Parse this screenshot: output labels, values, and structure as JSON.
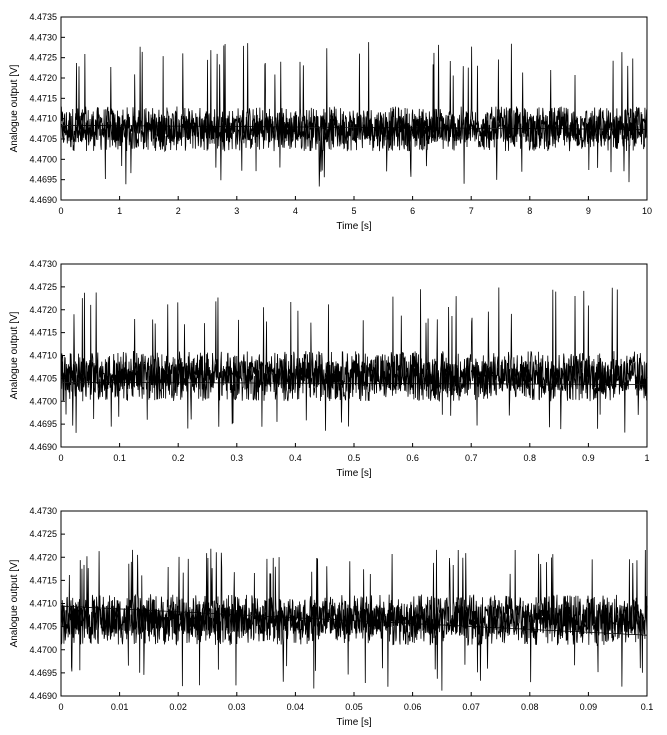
{
  "chart_data": [
    {
      "type": "line",
      "xlabel": "Time [s]",
      "ylabel": "Analogue output [V]",
      "xlim": [
        0,
        10
      ],
      "ylim": [
        4.469,
        4.4735
      ],
      "xticks": [
        0,
        1,
        2,
        3,
        4,
        5,
        6,
        7,
        8,
        9,
        10
      ],
      "xtick_labels": [
        "0",
        "1",
        "2",
        "3",
        "4",
        "5",
        "6",
        "7",
        "8",
        "9",
        "10"
      ],
      "yticks": [
        4.469,
        4.4695,
        4.47,
        4.4705,
        4.471,
        4.4715,
        4.472,
        4.4725,
        4.473,
        4.4735
      ],
      "ytick_labels": [
        "4.4690",
        "4.4695",
        "4.4700",
        "4.4705",
        "4.4710",
        "4.4715",
        "4.4720",
        "4.4725",
        "4.4730",
        "4.4735"
      ],
      "grid": false,
      "signal": {
        "mean": 4.47075,
        "core_min": 4.4702,
        "core_max": 4.4713,
        "spike_min": 4.4693,
        "spike_max": 4.4729
      },
      "series": [
        {
          "values_summary": "dense noise trace around 4.47075 V",
          "color": "#000000"
        }
      ]
    },
    {
      "type": "line",
      "xlabel": "Time [s]",
      "ylabel": "Analogue output [V]",
      "xlim": [
        0,
        1
      ],
      "ylim": [
        4.469,
        4.473
      ],
      "xticks": [
        0,
        0.1,
        0.2,
        0.3,
        0.4,
        0.5,
        0.6,
        0.7,
        0.8,
        0.9,
        1
      ],
      "xtick_labels": [
        "0",
        "0.1",
        "0.2",
        "0.3",
        "0.4",
        "0.5",
        "0.6",
        "0.7",
        "0.8",
        "0.9",
        "1"
      ],
      "yticks": [
        4.469,
        4.4695,
        4.47,
        4.4705,
        4.471,
        4.4715,
        4.472,
        4.4725,
        4.473
      ],
      "ytick_labels": [
        "4.4690",
        "4.4695",
        "4.4700",
        "4.4705",
        "4.4710",
        "4.4715",
        "4.4720",
        "4.4725",
        "4.4730"
      ],
      "grid": false,
      "signal": {
        "mean": 4.47055,
        "core_min": 4.47,
        "core_max": 4.4711,
        "spike_min": 4.4693,
        "spike_max": 4.4725
      },
      "series": [
        {
          "values_summary": "dense noise trace around 4.47055 V",
          "color": "#000000"
        }
      ]
    },
    {
      "type": "line",
      "xlabel": "Time [s]",
      "ylabel": "Analogue output [V]",
      "xlim": [
        0,
        0.1
      ],
      "ylim": [
        4.469,
        4.473
      ],
      "xticks": [
        0,
        0.01,
        0.02,
        0.03,
        0.04,
        0.05,
        0.06,
        0.07,
        0.08,
        0.09,
        0.1
      ],
      "xtick_labels": [
        "0",
        "0.01",
        "0.02",
        "0.03",
        "0.04",
        "0.05",
        "0.06",
        "0.07",
        "0.08",
        "0.09",
        "0.1"
      ],
      "yticks": [
        4.469,
        4.4695,
        4.47,
        4.4705,
        4.471,
        4.4715,
        4.472,
        4.4725,
        4.473
      ],
      "ytick_labels": [
        "4.4690",
        "4.4695",
        "4.4700",
        "4.4705",
        "4.4710",
        "4.4715",
        "4.4720",
        "4.4725",
        "4.4730"
      ],
      "grid": false,
      "signal": {
        "mean": 4.47065,
        "core_min": 4.4701,
        "core_max": 4.4712,
        "spike_min": 4.4691,
        "spike_max": 4.4722
      },
      "series": [
        {
          "values_summary": "dense noise trace around 4.47065 V",
          "color": "#000000"
        }
      ]
    }
  ]
}
